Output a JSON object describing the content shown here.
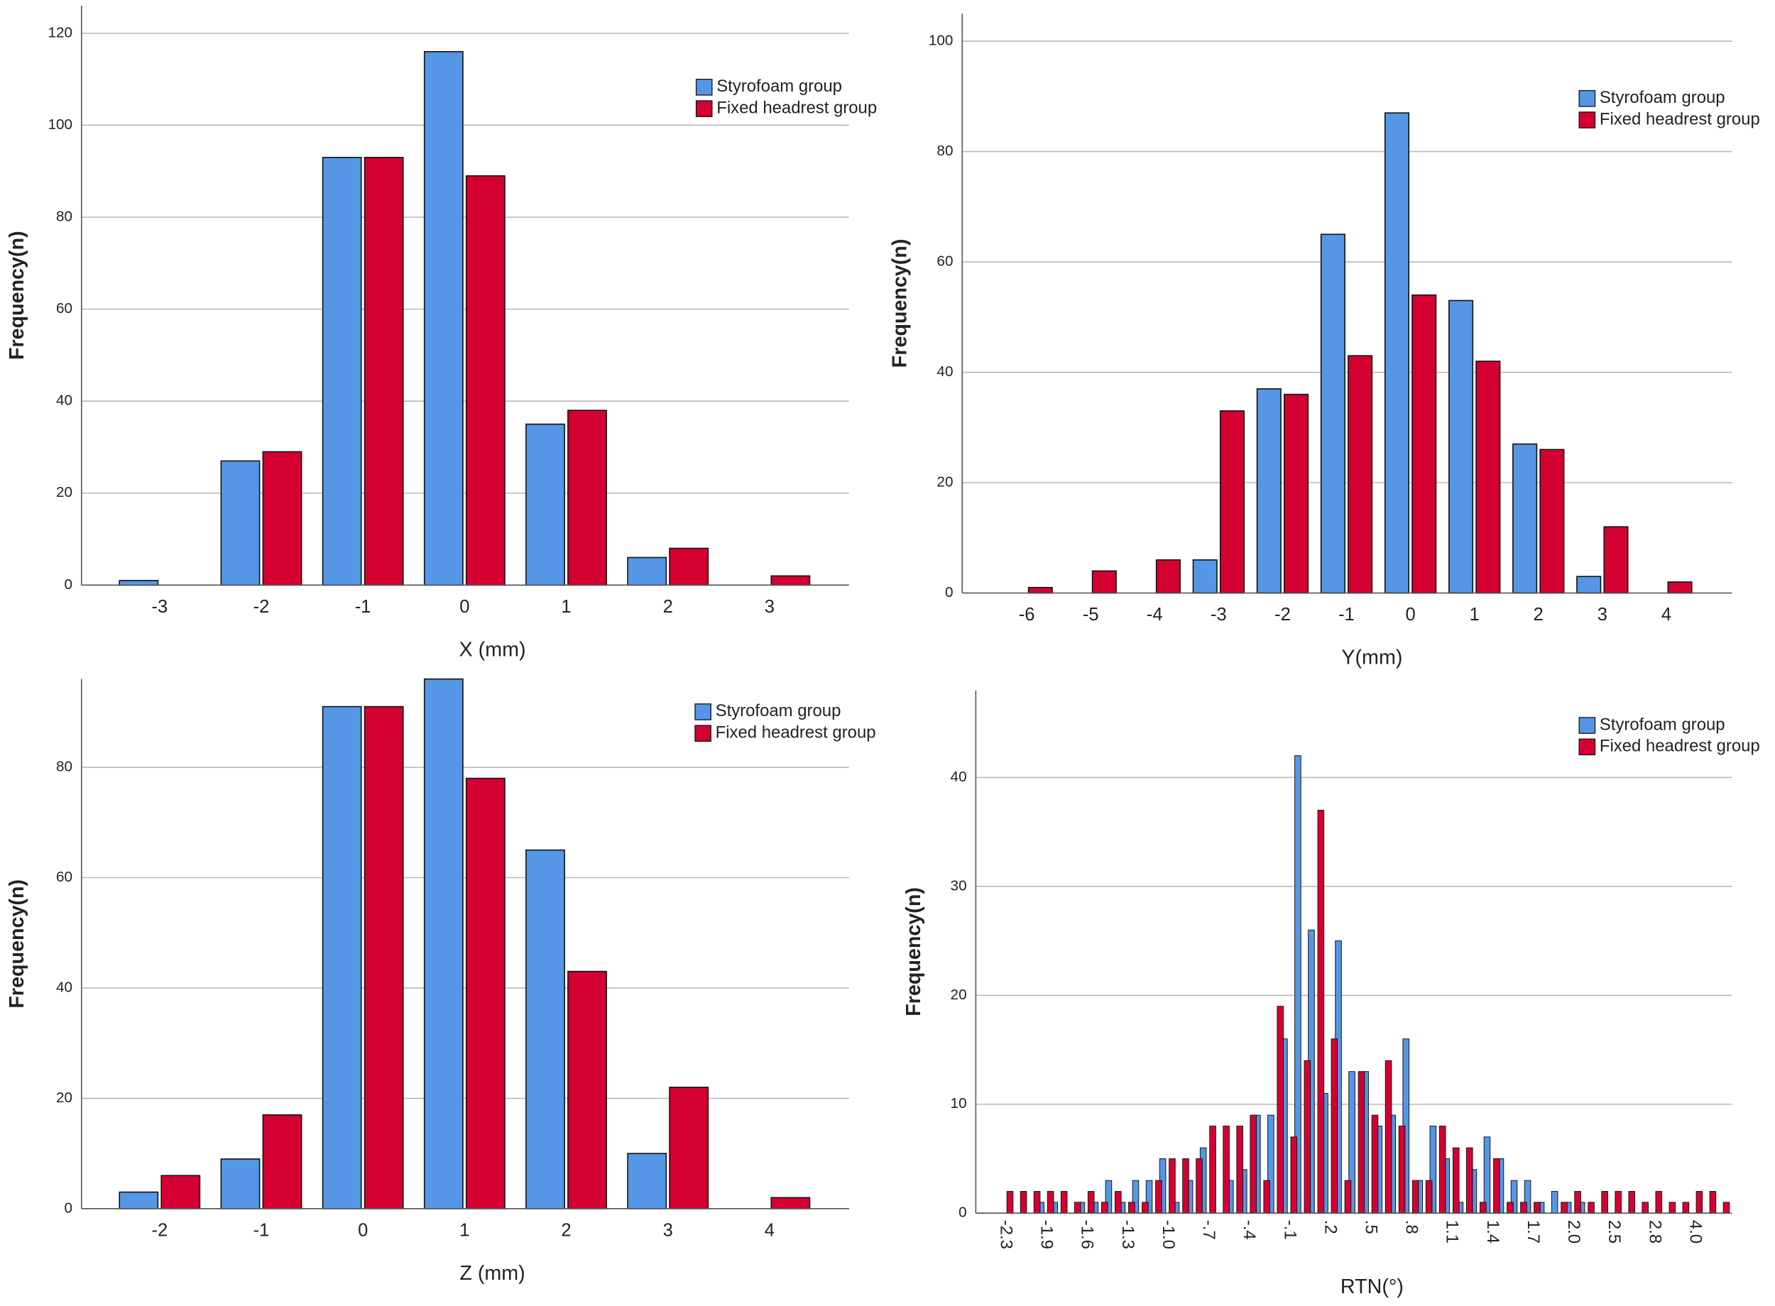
{
  "chart_data": [
    {
      "type": "bar",
      "x_label": "X (mm)",
      "y_label": "Frequency(n)",
      "grid": true,
      "legend": "upper right",
      "categories": [
        "-3",
        "-2",
        "-1",
        "0",
        "1",
        "2",
        "3"
      ],
      "series": [
        {
          "name": "Styrofoam group",
          "color": "#5596e6",
          "values": [
            1,
            27,
            93,
            116,
            35,
            6,
            0
          ]
        },
        {
          "name": "Fixed headrest group",
          "color": "#d50032",
          "values": [
            0,
            29,
            93,
            89,
            38,
            8,
            2
          ]
        }
      ],
      "ylim": [
        0,
        126
      ],
      "yticks": [
        0,
        20,
        40,
        60,
        80,
        100,
        120
      ]
    },
    {
      "type": "bar",
      "x_label": "Y(mm)",
      "y_label": "Frequency(n)",
      "grid": true,
      "legend": "upper right",
      "categories": [
        "-6",
        "-5",
        "-4",
        "-3",
        "-2",
        "-1",
        "0",
        "1",
        "2",
        "3",
        "4"
      ],
      "series": [
        {
          "name": "Styrofoam group",
          "color": "#5596e6",
          "values": [
            0,
            0,
            0,
            6,
            37,
            65,
            87,
            53,
            27,
            3,
            0
          ]
        },
        {
          "name": "Fixed headrest group",
          "color": "#d50032",
          "values": [
            1,
            4,
            6,
            33,
            36,
            43,
            54,
            42,
            26,
            12,
            2
          ]
        }
      ],
      "ylim": [
        0,
        105
      ],
      "yticks": [
        0,
        20,
        40,
        60,
        80,
        100
      ]
    },
    {
      "type": "bar",
      "x_label": "Z (mm)",
      "y_label": "Frequency(n)",
      "grid": true,
      "legend": "upper right",
      "categories": [
        "-2",
        "-1",
        "0",
        "1",
        "2",
        "3",
        "4"
      ],
      "series": [
        {
          "name": "Styrofoam group",
          "color": "#5596e6",
          "values": [
            3,
            9,
            91,
            96,
            65,
            10,
            0
          ]
        },
        {
          "name": "Fixed headrest group",
          "color": "#d50032",
          "values": [
            6,
            17,
            91,
            78,
            43,
            22,
            2
          ]
        }
      ],
      "ylim": [
        0,
        96
      ],
      "yticks": [
        0,
        20,
        40,
        60,
        80
      ]
    },
    {
      "type": "bar",
      "x_label": "RTN(°)",
      "y_label": "Frequency(n)",
      "grid": true,
      "legend": "upper right",
      "xtick_rotation": 90,
      "categories": [
        "-2.3",
        null,
        null,
        "-1.9",
        null,
        null,
        "-1.6",
        null,
        null,
        "-1.3",
        null,
        null,
        "-1.0",
        null,
        null,
        "-.7",
        null,
        null,
        "-.4",
        null,
        null,
        "-.1",
        null,
        null,
        ".2",
        null,
        null,
        ".5",
        null,
        null,
        ".8",
        null,
        null,
        "1.1",
        null,
        null,
        "1.4",
        null,
        null,
        "1.7",
        null,
        null,
        "2.0",
        null,
        null,
        "2.5",
        null,
        null,
        "2.8",
        null,
        null,
        "4.0",
        null,
        null
      ],
      "series": [
        {
          "name": "Styrofoam group",
          "color": "#5596e6",
          "values": [
            0,
            0,
            0,
            1,
            1,
            0,
            1,
            1,
            3,
            1,
            3,
            3,
            5,
            1,
            3,
            6,
            0,
            3,
            4,
            9,
            9,
            16,
            42,
            26,
            11,
            25,
            13,
            13,
            8,
            9,
            16,
            3,
            8,
            5,
            1,
            4,
            7,
            5,
            3,
            3,
            1,
            2,
            1,
            1,
            0,
            0,
            0,
            0,
            0,
            0,
            0,
            0,
            0,
            0
          ]
        },
        {
          "name": "Fixed headrest group",
          "color": "#d50032",
          "values": [
            2,
            2,
            2,
            2,
            2,
            1,
            2,
            1,
            2,
            1,
            1,
            3,
            5,
            5,
            5,
            8,
            8,
            8,
            9,
            3,
            19,
            7,
            14,
            37,
            16,
            3,
            13,
            9,
            14,
            8,
            3,
            3,
            8,
            6,
            6,
            1,
            5,
            1,
            1,
            1,
            0,
            1,
            2,
            1,
            2,
            2,
            2,
            1,
            2,
            1,
            1,
            2,
            2,
            1
          ]
        }
      ],
      "ylim": [
        0,
        48
      ],
      "yticks": [
        0,
        10,
        20,
        30,
        40
      ]
    }
  ]
}
